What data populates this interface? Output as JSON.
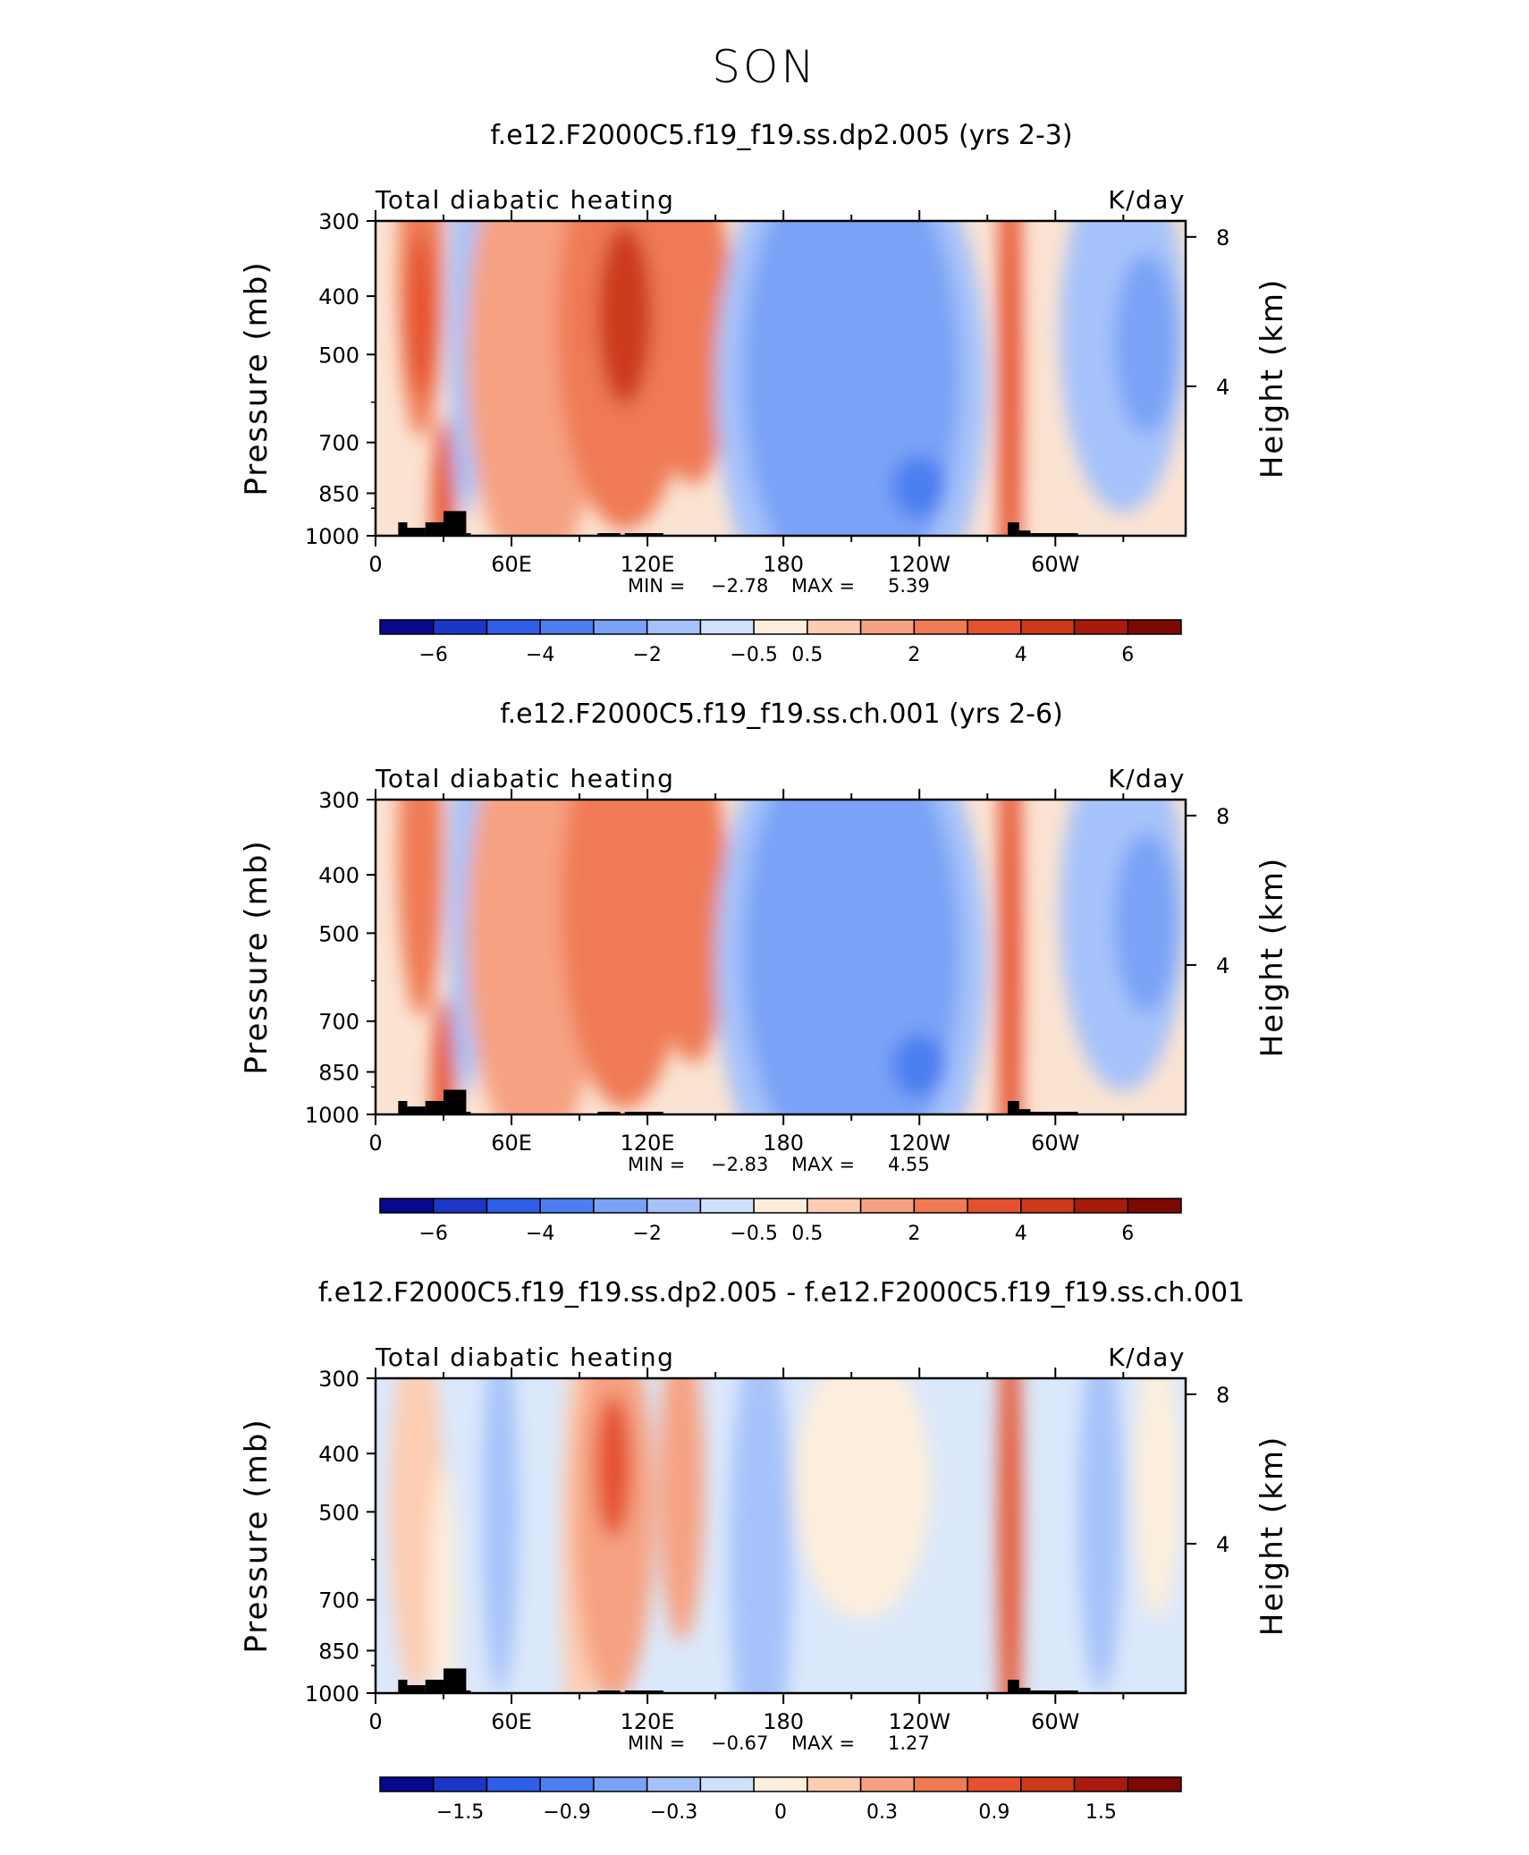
{
  "figure": {
    "title": "SON"
  },
  "chart_data": [
    {
      "type": "heatmap",
      "title": "f.e12.F2000C5.f19_f19.ss.dp2.005 (yrs 2-3)",
      "left_label": "Total diabatic heating",
      "right_label": "K/day",
      "ylabel": "Pressure (mb)",
      "y2label": "Height (km)",
      "y_ticks": [
        "300",
        "400",
        "500",
        "700",
        "850",
        "1000"
      ],
      "y2_ticks": [
        "8",
        "4"
      ],
      "x_ticks": [
        "0",
        "60E",
        "120E",
        "180",
        "120W",
        "60W"
      ],
      "stats": {
        "min_label": "MIN =",
        "min": "−2.78",
        "max_label": "MAX =",
        "max": "5.39"
      },
      "colorbar_labels": [
        "−6",
        "−4",
        "−2",
        "−0.5",
        "0.5",
        "2",
        "4",
        "6"
      ],
      "colorbar_colors": [
        "#08088c",
        "#1c36c8",
        "#2f5fe8",
        "#4c7ef0",
        "#7aa2f6",
        "#a6c2fa",
        "#cfe1fc",
        "#fdeedb",
        "#fdcdb3",
        "#f6a282",
        "#ef7a54",
        "#e5512f",
        "#cc3a1a",
        "#a81b0c",
        "#7c0a03"
      ],
      "field": {
        "background": "#fbe3d2",
        "blobs": [
          {
            "lon": 20,
            "p": 370,
            "w": 10,
            "h": 360,
            "c": "#ef7a54"
          },
          {
            "lon": 20,
            "p": 430,
            "w": 6,
            "h": 180,
            "c": "#e5512f"
          },
          {
            "lon": 40,
            "p": 450,
            "w": 8,
            "h": 420,
            "c": "#a6c2fa"
          },
          {
            "lon": 70,
            "p": 500,
            "w": 30,
            "h": 500,
            "c": "#f6a282"
          },
          {
            "lon": 110,
            "p": 450,
            "w": 30,
            "h": 450,
            "c": "#ef7a54"
          },
          {
            "lon": 110,
            "p": 430,
            "w": 12,
            "h": 200,
            "c": "#cc3a1a"
          },
          {
            "lon": 140,
            "p": 450,
            "w": 18,
            "h": 350,
            "c": "#ef7a54"
          },
          {
            "lon": 210,
            "p": 560,
            "w": 60,
            "h": 620,
            "c": "#a6c2fa"
          },
          {
            "lon": 210,
            "p": 540,
            "w": 48,
            "h": 520,
            "c": "#7aa2f6"
          },
          {
            "lon": 240,
            "p": 830,
            "w": 12,
            "h": 70,
            "c": "#4c7ef0"
          },
          {
            "lon": 280,
            "p": 560,
            "w": 5,
            "h": 760,
            "c": "#e5512f"
          },
          {
            "lon": 330,
            "p": 460,
            "w": 28,
            "h": 400,
            "c": "#a6c2fa"
          },
          {
            "lon": 340,
            "p": 480,
            "w": 14,
            "h": 200,
            "c": "#7aa2f6"
          },
          {
            "lon": 30,
            "p": 900,
            "w": 5,
            "h": 200,
            "c": "#e5512f"
          }
        ],
        "topography": [
          {
            "lon0": 10,
            "lon1": 14,
            "p": 950
          },
          {
            "lon0": 14,
            "lon1": 22,
            "p": 970
          },
          {
            "lon0": 22,
            "lon1": 30,
            "p": 950
          },
          {
            "lon0": 30,
            "lon1": 40,
            "p": 910
          },
          {
            "lon0": 40,
            "lon1": 42,
            "p": 990
          },
          {
            "lon0": 98,
            "lon1": 108,
            "p": 990
          },
          {
            "lon0": 110,
            "lon1": 127,
            "p": 990
          },
          {
            "lon0": 279,
            "lon1": 284,
            "p": 950
          },
          {
            "lon0": 284,
            "lon1": 289,
            "p": 980
          },
          {
            "lon0": 289,
            "lon1": 310,
            "p": 990
          }
        ]
      }
    },
    {
      "type": "heatmap",
      "title": "f.e12.F2000C5.f19_f19.ss.ch.001 (yrs 2-6)",
      "left_label": "Total diabatic heating",
      "right_label": "K/day",
      "ylabel": "Pressure (mb)",
      "y2label": "Height (km)",
      "y_ticks": [
        "300",
        "400",
        "500",
        "700",
        "850",
        "1000"
      ],
      "y2_ticks": [
        "8",
        "4"
      ],
      "x_ticks": [
        "0",
        "60E",
        "120E",
        "180",
        "120W",
        "60W"
      ],
      "stats": {
        "min_label": "MIN =",
        "min": "−2.83",
        "max_label": "MAX =",
        "max": "4.55"
      },
      "colorbar_labels": [
        "−6",
        "−4",
        "−2",
        "−0.5",
        "0.5",
        "2",
        "4",
        "6"
      ],
      "colorbar_colors": [
        "#08088c",
        "#1c36c8",
        "#2f5fe8",
        "#4c7ef0",
        "#7aa2f6",
        "#a6c2fa",
        "#cfe1fc",
        "#fdeedb",
        "#fdcdb3",
        "#f6a282",
        "#ef7a54",
        "#e5512f",
        "#cc3a1a",
        "#a81b0c",
        "#7c0a03"
      ],
      "field": {
        "background": "#fbe3d2",
        "blobs": [
          {
            "lon": 20,
            "p": 370,
            "w": 10,
            "h": 360,
            "c": "#ef7a54"
          },
          {
            "lon": 40,
            "p": 450,
            "w": 8,
            "h": 420,
            "c": "#a6c2fa"
          },
          {
            "lon": 70,
            "p": 500,
            "w": 30,
            "h": 500,
            "c": "#f6a282"
          },
          {
            "lon": 110,
            "p": 450,
            "w": 28,
            "h": 450,
            "c": "#ef7a54"
          },
          {
            "lon": 140,
            "p": 450,
            "w": 16,
            "h": 350,
            "c": "#ef7a54"
          },
          {
            "lon": 210,
            "p": 560,
            "w": 60,
            "h": 620,
            "c": "#a6c2fa"
          },
          {
            "lon": 210,
            "p": 540,
            "w": 48,
            "h": 520,
            "c": "#7aa2f6"
          },
          {
            "lon": 240,
            "p": 830,
            "w": 12,
            "h": 70,
            "c": "#4c7ef0"
          },
          {
            "lon": 280,
            "p": 560,
            "w": 5,
            "h": 760,
            "c": "#e5512f"
          },
          {
            "lon": 330,
            "p": 460,
            "w": 28,
            "h": 400,
            "c": "#a6c2fa"
          },
          {
            "lon": 340,
            "p": 480,
            "w": 14,
            "h": 200,
            "c": "#7aa2f6"
          },
          {
            "lon": 30,
            "p": 900,
            "w": 5,
            "h": 200,
            "c": "#e5512f"
          }
        ],
        "topography": [
          {
            "lon0": 10,
            "lon1": 14,
            "p": 950
          },
          {
            "lon0": 14,
            "lon1": 22,
            "p": 970
          },
          {
            "lon0": 22,
            "lon1": 30,
            "p": 950
          },
          {
            "lon0": 30,
            "lon1": 40,
            "p": 910
          },
          {
            "lon0": 40,
            "lon1": 42,
            "p": 990
          },
          {
            "lon0": 98,
            "lon1": 108,
            "p": 990
          },
          {
            "lon0": 110,
            "lon1": 127,
            "p": 990
          },
          {
            "lon0": 279,
            "lon1": 284,
            "p": 950
          },
          {
            "lon0": 284,
            "lon1": 289,
            "p": 980
          },
          {
            "lon0": 289,
            "lon1": 310,
            "p": 990
          }
        ]
      }
    },
    {
      "type": "heatmap",
      "title": "f.e12.F2000C5.f19_f19.ss.dp2.005 - f.e12.F2000C5.f19_f19.ss.ch.001",
      "left_label": "Total diabatic heating",
      "right_label": "K/day",
      "ylabel": "Pressure (mb)",
      "y2label": "Height (km)",
      "y_ticks": [
        "300",
        "400",
        "500",
        "700",
        "850",
        "1000"
      ],
      "y2_ticks": [
        "8",
        "4"
      ],
      "x_ticks": [
        "0",
        "60E",
        "120E",
        "180",
        "120W",
        "60W"
      ],
      "stats": {
        "min_label": "MIN =",
        "min": "−0.67",
        "max_label": "MAX =",
        "max": "1.27"
      },
      "colorbar_labels": [
        "−1.5",
        "−0.9",
        "−0.3",
        "0",
        "0.3",
        "0.9",
        "1.5"
      ],
      "colorbar_colors": [
        "#08088c",
        "#1c36c8",
        "#2f5fe8",
        "#4c7ef0",
        "#7aa2f6",
        "#a6c2fa",
        "#cfe1fc",
        "#fdeedb",
        "#fdcdb3",
        "#f6a282",
        "#ef7a54",
        "#e5512f",
        "#cc3a1a",
        "#a81b0c",
        "#7c0a03"
      ],
      "field": {
        "background": "#dbe8fb",
        "blobs": [
          {
            "lon": 18,
            "p": 500,
            "w": 12,
            "h": 400,
            "c": "#fdcdb3"
          },
          {
            "lon": 30,
            "p": 700,
            "w": 6,
            "h": 300,
            "c": "#fdeedb"
          },
          {
            "lon": 55,
            "p": 500,
            "w": 8,
            "h": 400,
            "c": "#a6c2fa"
          },
          {
            "lon": 90,
            "p": 600,
            "w": 8,
            "h": 500,
            "c": "#fdcdb3"
          },
          {
            "lon": 105,
            "p": 500,
            "w": 18,
            "h": 420,
            "c": "#f6a282"
          },
          {
            "lon": 105,
            "p": 420,
            "w": 8,
            "h": 160,
            "c": "#e5512f"
          },
          {
            "lon": 135,
            "p": 450,
            "w": 10,
            "h": 350,
            "c": "#f6a282"
          },
          {
            "lon": 170,
            "p": 600,
            "w": 14,
            "h": 500,
            "c": "#a6c2fa"
          },
          {
            "lon": 215,
            "p": 450,
            "w": 30,
            "h": 300,
            "c": "#fdeedb"
          },
          {
            "lon": 280,
            "p": 550,
            "w": 5,
            "h": 600,
            "c": "#e5512f"
          },
          {
            "lon": 320,
            "p": 500,
            "w": 10,
            "h": 400,
            "c": "#a6c2fa"
          },
          {
            "lon": 345,
            "p": 450,
            "w": 10,
            "h": 300,
            "c": "#fdeedb"
          }
        ],
        "topography": [
          {
            "lon0": 10,
            "lon1": 14,
            "p": 950
          },
          {
            "lon0": 14,
            "lon1": 22,
            "p": 970
          },
          {
            "lon0": 22,
            "lon1": 30,
            "p": 950
          },
          {
            "lon0": 30,
            "lon1": 40,
            "p": 910
          },
          {
            "lon0": 40,
            "lon1": 42,
            "p": 990
          },
          {
            "lon0": 98,
            "lon1": 108,
            "p": 990
          },
          {
            "lon0": 110,
            "lon1": 127,
            "p": 990
          },
          {
            "lon0": 279,
            "lon1": 284,
            "p": 950
          },
          {
            "lon0": 284,
            "lon1": 289,
            "p": 980
          },
          {
            "lon0": 289,
            "lon1": 310,
            "p": 990
          }
        ]
      }
    }
  ]
}
